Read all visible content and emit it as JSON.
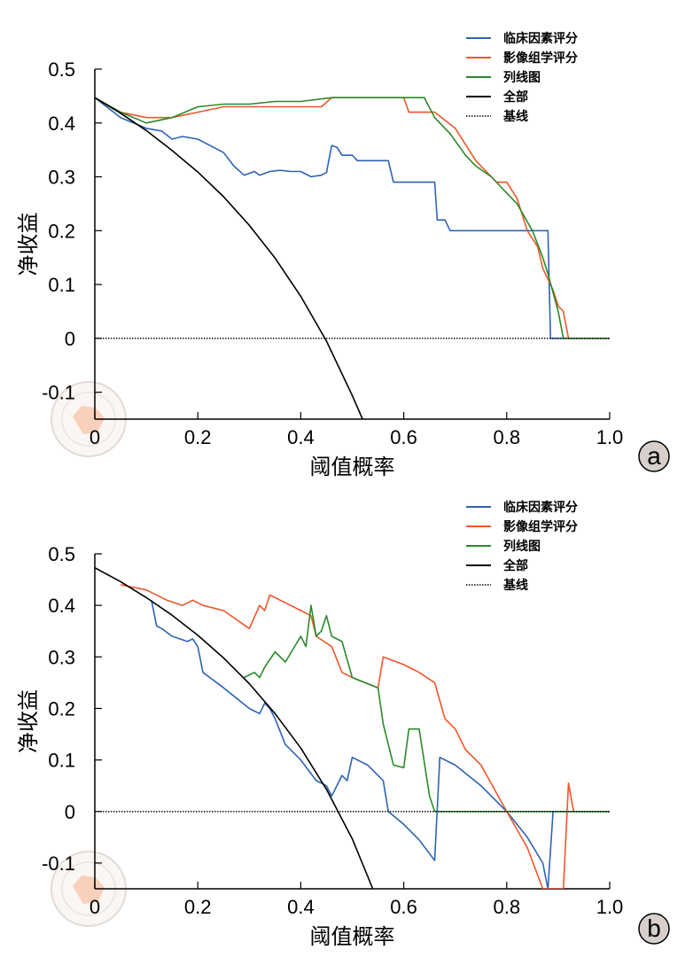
{
  "chart_data": [
    {
      "type": "line",
      "panel_label": "a",
      "xlabel": "阈值概率",
      "ylabel": "净收益",
      "xlim": [
        0,
        1.0
      ],
      "ylim": [
        -0.15,
        0.5
      ],
      "xticks": [
        "0",
        "0.2",
        "0.4",
        "0.6",
        "0.8",
        "1.0"
      ],
      "yticks": [
        "0.5",
        "0.4",
        "0.3",
        "0.2",
        "0.1",
        "0",
        "-0.1"
      ],
      "legend_position": "top-right",
      "series": [
        {
          "name": "临床因素评分",
          "color": "#2f63b5",
          "style": "solid",
          "points": [
            [
              0.0,
              0.447
            ],
            [
              0.05,
              0.41
            ],
            [
              0.1,
              0.39
            ],
            [
              0.13,
              0.385
            ],
            [
              0.15,
              0.37
            ],
            [
              0.17,
              0.375
            ],
            [
              0.2,
              0.37
            ],
            [
              0.23,
              0.355
            ],
            [
              0.25,
              0.345
            ],
            [
              0.27,
              0.32
            ],
            [
              0.29,
              0.303
            ],
            [
              0.31,
              0.31
            ],
            [
              0.32,
              0.303
            ],
            [
              0.34,
              0.31
            ],
            [
              0.36,
              0.312
            ],
            [
              0.38,
              0.31
            ],
            [
              0.4,
              0.31
            ],
            [
              0.42,
              0.3
            ],
            [
              0.44,
              0.303
            ],
            [
              0.45,
              0.308
            ],
            [
              0.46,
              0.358
            ],
            [
              0.47,
              0.355
            ],
            [
              0.48,
              0.34
            ],
            [
              0.5,
              0.34
            ],
            [
              0.51,
              0.33
            ],
            [
              0.57,
              0.33
            ],
            [
              0.58,
              0.29
            ],
            [
              0.64,
              0.29
            ],
            [
              0.66,
              0.29
            ],
            [
              0.665,
              0.22
            ],
            [
              0.68,
              0.22
            ],
            [
              0.69,
              0.2
            ],
            [
              0.88,
              0.2
            ],
            [
              0.885,
              0.0
            ],
            [
              1.0,
              0.0
            ]
          ]
        },
        {
          "name": "影像组学评分",
          "color": "#f0562a",
          "style": "solid",
          "points": [
            [
              0.0,
              0.447
            ],
            [
              0.05,
              0.42
            ],
            [
              0.1,
              0.41
            ],
            [
              0.15,
              0.41
            ],
            [
              0.2,
              0.42
            ],
            [
              0.25,
              0.43
            ],
            [
              0.3,
              0.43
            ],
            [
              0.35,
              0.43
            ],
            [
              0.4,
              0.43
            ],
            [
              0.44,
              0.43
            ],
            [
              0.46,
              0.447
            ],
            [
              0.6,
              0.447
            ],
            [
              0.61,
              0.42
            ],
            [
              0.66,
              0.42
            ],
            [
              0.7,
              0.39
            ],
            [
              0.74,
              0.33
            ],
            [
              0.78,
              0.29
            ],
            [
              0.8,
              0.29
            ],
            [
              0.82,
              0.26
            ],
            [
              0.84,
              0.2
            ],
            [
              0.86,
              0.17
            ],
            [
              0.87,
              0.13
            ],
            [
              0.89,
              0.09
            ],
            [
              0.9,
              0.06
            ],
            [
              0.91,
              0.05
            ],
            [
              0.92,
              0.0
            ],
            [
              1.0,
              0.0
            ]
          ]
        },
        {
          "name": "列线图",
          "color": "#2a8a2a",
          "style": "solid",
          "points": [
            [
              0.0,
              0.447
            ],
            [
              0.05,
              0.42
            ],
            [
              0.1,
              0.4
            ],
            [
              0.15,
              0.41
            ],
            [
              0.2,
              0.43
            ],
            [
              0.25,
              0.435
            ],
            [
              0.3,
              0.435
            ],
            [
              0.35,
              0.44
            ],
            [
              0.4,
              0.44
            ],
            [
              0.46,
              0.447
            ],
            [
              0.64,
              0.447
            ],
            [
              0.66,
              0.41
            ],
            [
              0.69,
              0.38
            ],
            [
              0.72,
              0.34
            ],
            [
              0.74,
              0.32
            ],
            [
              0.77,
              0.3
            ],
            [
              0.8,
              0.27
            ],
            [
              0.82,
              0.25
            ],
            [
              0.85,
              0.2
            ],
            [
              0.87,
              0.15
            ],
            [
              0.88,
              0.12
            ],
            [
              0.9,
              0.05
            ],
            [
              0.91,
              0.0
            ],
            [
              1.0,
              0.0
            ]
          ]
        },
        {
          "name": "全部",
          "color": "#000000",
          "style": "solid",
          "points": [
            [
              0.0,
              0.447
            ],
            [
              0.05,
              0.418
            ],
            [
              0.1,
              0.386
            ],
            [
              0.15,
              0.349
            ],
            [
              0.2,
              0.309
            ],
            [
              0.25,
              0.263
            ],
            [
              0.3,
              0.21
            ],
            [
              0.35,
              0.149
            ],
            [
              0.4,
              0.078
            ],
            [
              0.45,
              -0.005
            ],
            [
              0.5,
              -0.106
            ],
            [
              0.52,
              -0.15
            ]
          ]
        },
        {
          "name": "基线",
          "color": "#000000",
          "style": "dotted",
          "points": [
            [
              0.0,
              0.0
            ],
            [
              1.0,
              0.0
            ]
          ]
        }
      ]
    },
    {
      "type": "line",
      "panel_label": "b",
      "xlabel": "阈值概率",
      "ylabel": "净收益",
      "xlim": [
        0,
        1.0
      ],
      "ylim": [
        -0.15,
        0.5
      ],
      "xticks": [
        "0",
        "0.2",
        "0.4",
        "0.6",
        "0.8",
        "1.0"
      ],
      "yticks": [
        "0.5",
        "0.4",
        "0.3",
        "0.2",
        "0.1",
        "0",
        "-0.1"
      ],
      "legend_position": "top-right",
      "series": [
        {
          "name": "临床因素评分",
          "color": "#2f63b5",
          "style": "solid",
          "points": [
            [
              0.11,
              0.41
            ],
            [
              0.12,
              0.36
            ],
            [
              0.13,
              0.355
            ],
            [
              0.15,
              0.34
            ],
            [
              0.18,
              0.33
            ],
            [
              0.19,
              0.335
            ],
            [
              0.2,
              0.32
            ],
            [
              0.21,
              0.27
            ],
            [
              0.25,
              0.24
            ],
            [
              0.3,
              0.2
            ],
            [
              0.32,
              0.19
            ],
            [
              0.33,
              0.21
            ],
            [
              0.34,
              0.2
            ],
            [
              0.35,
              0.18
            ],
            [
              0.37,
              0.13
            ],
            [
              0.4,
              0.1
            ],
            [
              0.43,
              0.06
            ],
            [
              0.45,
              0.05
            ],
            [
              0.46,
              0.03
            ],
            [
              0.47,
              0.05
            ],
            [
              0.48,
              0.07
            ],
            [
              0.49,
              0.06
            ],
            [
              0.5,
              0.105
            ],
            [
              0.53,
              0.09
            ],
            [
              0.56,
              0.06
            ],
            [
              0.57,
              0.0
            ],
            [
              0.6,
              -0.025
            ],
            [
              0.63,
              -0.055
            ],
            [
              0.66,
              -0.095
            ],
            [
              0.67,
              0.105
            ],
            [
              0.7,
              0.09
            ],
            [
              0.75,
              0.05
            ],
            [
              0.8,
              0.0
            ],
            [
              0.84,
              -0.05
            ],
            [
              0.87,
              -0.1
            ],
            [
              0.88,
              -0.15
            ],
            [
              0.89,
              0.0
            ],
            [
              1.0,
              0.0
            ]
          ]
        },
        {
          "name": "影像组学评分",
          "color": "#f0562a",
          "style": "solid",
          "points": [
            [
              0.05,
              0.44
            ],
            [
              0.1,
              0.43
            ],
            [
              0.14,
              0.41
            ],
            [
              0.17,
              0.4
            ],
            [
              0.19,
              0.41
            ],
            [
              0.21,
              0.4
            ],
            [
              0.25,
              0.39
            ],
            [
              0.3,
              0.355
            ],
            [
              0.32,
              0.4
            ],
            [
              0.33,
              0.39
            ],
            [
              0.34,
              0.42
            ],
            [
              0.36,
              0.41
            ],
            [
              0.4,
              0.39
            ],
            [
              0.42,
              0.38
            ],
            [
              0.43,
              0.34
            ],
            [
              0.46,
              0.32
            ],
            [
              0.48,
              0.27
            ],
            [
              0.5,
              0.26
            ],
            [
              0.55,
              0.24
            ],
            [
              0.56,
              0.3
            ],
            [
              0.6,
              0.285
            ],
            [
              0.63,
              0.27
            ],
            [
              0.66,
              0.25
            ],
            [
              0.68,
              0.18
            ],
            [
              0.7,
              0.16
            ],
            [
              0.72,
              0.12
            ],
            [
              0.75,
              0.09
            ],
            [
              0.8,
              0.0
            ],
            [
              0.84,
              -0.07
            ],
            [
              0.87,
              -0.15
            ],
            [
              0.91,
              -0.15
            ],
            [
              0.92,
              0.055
            ],
            [
              0.93,
              0.0
            ],
            [
              1.0,
              0.0
            ]
          ]
        },
        {
          "name": "列线图",
          "color": "#2a8a2a",
          "style": "solid",
          "points": [
            [
              0.29,
              0.26
            ],
            [
              0.31,
              0.27
            ],
            [
              0.32,
              0.26
            ],
            [
              0.33,
              0.28
            ],
            [
              0.35,
              0.31
            ],
            [
              0.37,
              0.29
            ],
            [
              0.4,
              0.34
            ],
            [
              0.41,
              0.32
            ],
            [
              0.42,
              0.4
            ],
            [
              0.43,
              0.34
            ],
            [
              0.44,
              0.35
            ],
            [
              0.45,
              0.38
            ],
            [
              0.46,
              0.34
            ],
            [
              0.48,
              0.33
            ],
            [
              0.5,
              0.26
            ],
            [
              0.55,
              0.24
            ],
            [
              0.56,
              0.17
            ],
            [
              0.58,
              0.09
            ],
            [
              0.6,
              0.085
            ],
            [
              0.61,
              0.16
            ],
            [
              0.63,
              0.16
            ],
            [
              0.65,
              0.03
            ],
            [
              0.66,
              0.0
            ],
            [
              1.0,
              0.0
            ]
          ]
        },
        {
          "name": "全部",
          "color": "#000000",
          "style": "solid",
          "points": [
            [
              0.0,
              0.473
            ],
            [
              0.05,
              0.446
            ],
            [
              0.1,
              0.415
            ],
            [
              0.15,
              0.381
            ],
            [
              0.2,
              0.342
            ],
            [
              0.25,
              0.298
            ],
            [
              0.3,
              0.248
            ],
            [
              0.35,
              0.19
            ],
            [
              0.4,
              0.123
            ],
            [
              0.45,
              0.043
            ],
            [
              0.5,
              -0.053
            ],
            [
              0.54,
              -0.15
            ]
          ]
        },
        {
          "name": "基线",
          "color": "#000000",
          "style": "dotted",
          "points": [
            [
              0.0,
              0.0
            ],
            [
              1.0,
              0.0
            ]
          ]
        }
      ]
    }
  ]
}
